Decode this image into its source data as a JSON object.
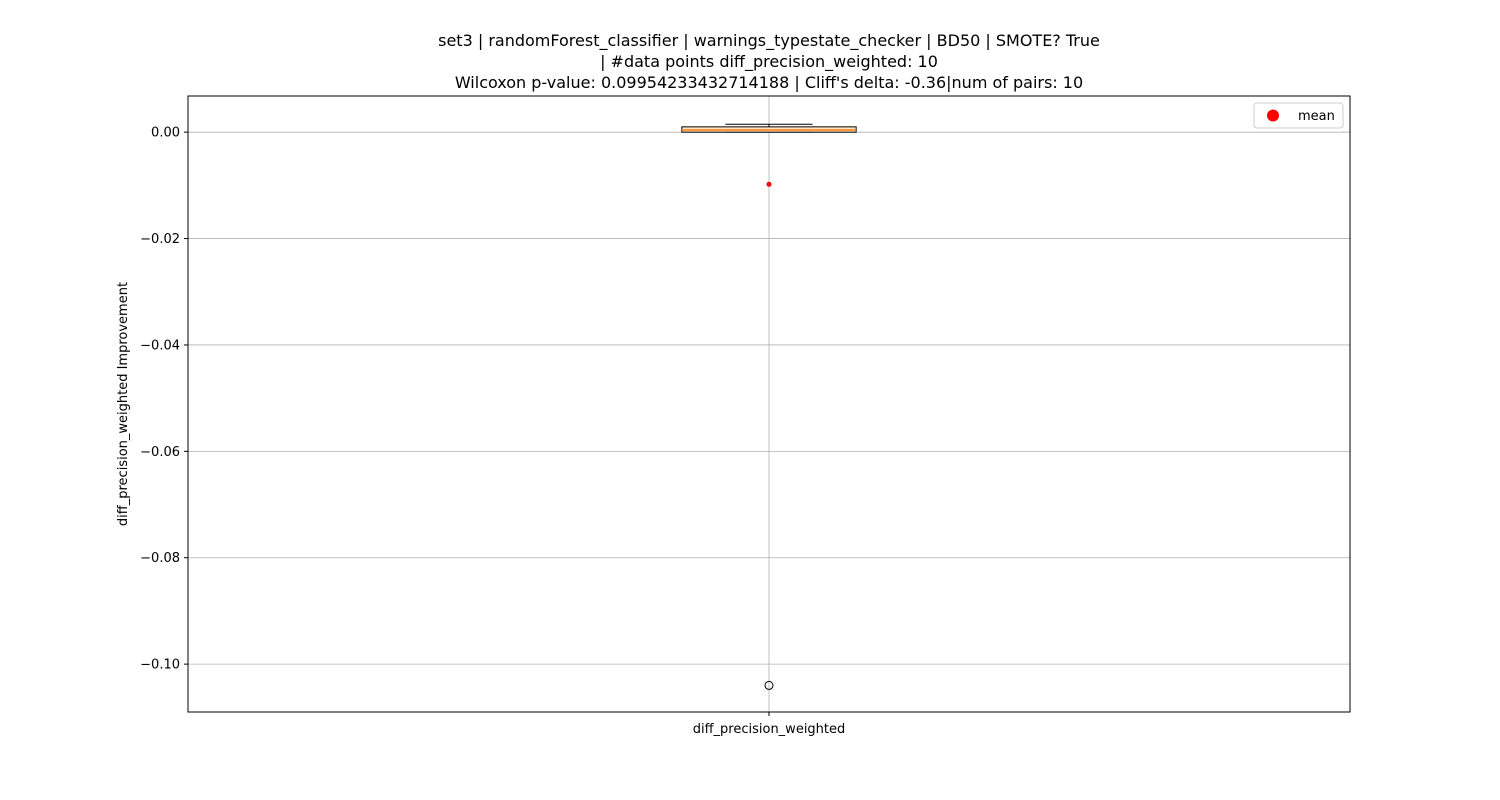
{
  "chart_data": {
    "type": "box",
    "title_lines": [
      "set3 | randomForest_classifier | warnings_typestate_checker | BD50 | SMOTE? True",
      "| #data points diff_precision_weighted: 10",
      "Wilcoxon p-value: 0.09954233432714188 | Cliff's delta: -0.36|num of pairs: 10"
    ],
    "xlabel": "",
    "ylabel": "diff_precision_weighted Improvement",
    "categories": [
      "diff_precision_weighted"
    ],
    "ylim": [
      -0.109,
      0.0068
    ],
    "yticks": [
      0.0,
      -0.02,
      -0.04,
      -0.06,
      -0.08,
      -0.1
    ],
    "ytick_labels": [
      "0.00",
      "−0.02",
      "−0.04",
      "−0.06",
      "−0.08",
      "−0.10"
    ],
    "grid": true,
    "legend": {
      "position": "upper-right",
      "entries": [
        {
          "label": "mean",
          "color": "#ff0000"
        }
      ]
    },
    "box": {
      "category": "diff_precision_weighted",
      "whisker_low": 0.0,
      "q1": 0.0,
      "median": 0.0004,
      "q3": 0.001,
      "whisker_high": 0.0015,
      "mean": -0.0098,
      "outliers": [
        -0.104
      ]
    },
    "colors": {
      "box_fill": "#ffe4c4",
      "median": "#ff7f0e",
      "mean": "#ff0000",
      "grid": "#b0b0b0"
    }
  }
}
